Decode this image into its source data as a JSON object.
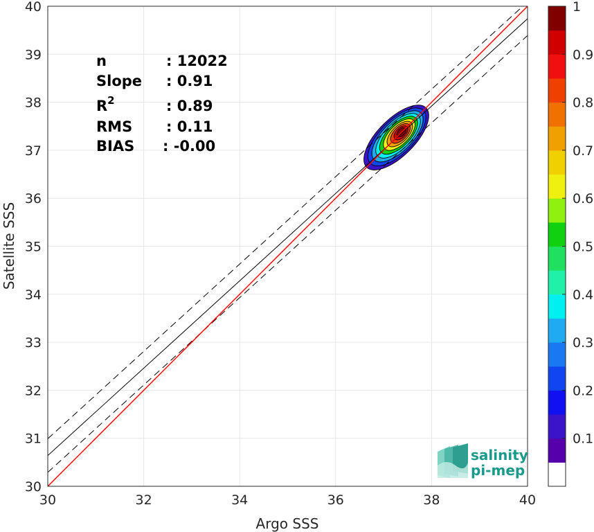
{
  "chart_data": {
    "type": "heatmap",
    "title": "",
    "xlabel": "Argo SSS",
    "ylabel": "Satellite SSS",
    "xlim": [
      30,
      40
    ],
    "ylim": [
      30,
      40
    ],
    "x_ticks": [
      "30",
      "32",
      "34",
      "36",
      "38",
      "40"
    ],
    "y_ticks": [
      "30",
      "31",
      "32",
      "33",
      "34",
      "35",
      "36",
      "37",
      "38",
      "39",
      "40"
    ],
    "grid": true,
    "stats": [
      {
        "label": "n",
        "value": ": 12022"
      },
      {
        "label": "Slope",
        "value": ": 0.91"
      },
      {
        "label": "R",
        "sup": "2",
        "value": ": 0.89"
      },
      {
        "label": "RMS",
        "value": ": 0.11"
      },
      {
        "label": "BIAS",
        "value": ": -0.00"
      }
    ],
    "lines": {
      "identity": {
        "color": "#ff0000",
        "slope": 1,
        "intercept": 0
      },
      "regression": {
        "color": "#000000",
        "slope": 0.91,
        "intercept": 3.34
      },
      "regression_bounds": {
        "color": "#000000",
        "style": "dashed",
        "offset": 0.35
      }
    },
    "density_contours": {
      "levels": [
        0.05,
        0.15,
        0.25,
        0.35,
        0.45,
        0.55,
        0.65,
        0.75,
        0.85,
        0.95
      ],
      "center": {
        "x": 37.38,
        "y": 37.38
      },
      "peak_value": 1.0
    },
    "colorbar": {
      "range": [
        0,
        1
      ],
      "ticks": [
        "0.1",
        "0.2",
        "0.3",
        "0.4",
        "0.5",
        "0.6",
        "0.7",
        "0.8",
        "0.9",
        "1"
      ],
      "colors": [
        "#ffffff",
        "#5500aa",
        "#3a14c9",
        "#1010f0",
        "#1046f0",
        "#1a78f0",
        "#20aaf0",
        "#00f0f0",
        "#20f0a8",
        "#20e060",
        "#10d010",
        "#90f010",
        "#f0f010",
        "#f0d000",
        "#f0a000",
        "#f07000",
        "#f04000",
        "#f01010",
        "#d00000",
        "#800000"
      ]
    }
  },
  "logo": {
    "line1": "salinity",
    "line2": "pi-mep"
  }
}
